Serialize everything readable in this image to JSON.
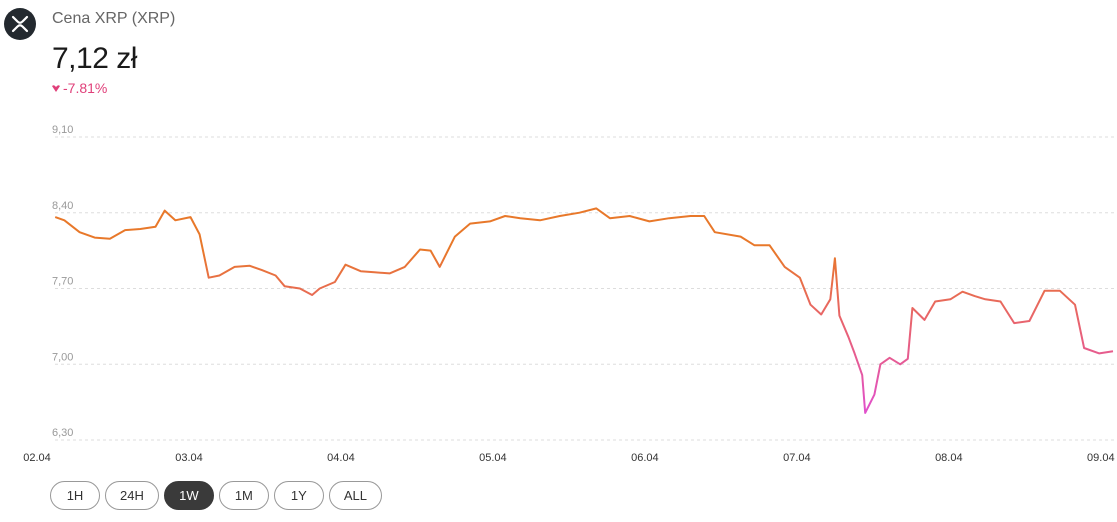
{
  "header": {
    "name": "Cena XRP (XRP)",
    "price": "7,12 zł",
    "change": "-7.81%"
  },
  "chart_data": {
    "type": "line",
    "x": [
      0.12,
      0.18,
      0.28,
      0.38,
      0.48,
      0.58,
      0.68,
      0.78,
      0.84,
      0.91,
      1.01,
      1.07,
      1.13,
      1.2,
      1.3,
      1.4,
      1.48,
      1.57,
      1.63,
      1.73,
      1.81,
      1.86,
      1.96,
      2.03,
      2.13,
      2.22,
      2.32,
      2.42,
      2.52,
      2.59,
      2.65,
      2.75,
      2.85,
      2.98,
      3.08,
      3.18,
      3.31,
      3.44,
      3.57,
      3.68,
      3.77,
      3.9,
      4.03,
      4.16,
      4.3,
      4.39,
      4.46,
      4.63,
      4.72,
      4.82,
      4.92,
      5.02,
      5.09,
      5.16,
      5.22,
      5.25,
      5.28,
      5.34,
      5.38,
      5.43,
      5.45,
      5.51,
      5.55,
      5.61,
      5.68,
      5.73,
      5.76,
      5.84,
      5.91,
      6.01,
      6.09,
      6.17,
      6.24,
      6.34,
      6.43,
      6.53,
      6.63,
      6.73,
      6.83,
      6.89,
      6.99,
      7.08
    ],
    "values": [
      8.36,
      8.33,
      8.22,
      8.17,
      8.16,
      8.24,
      8.25,
      8.27,
      8.42,
      8.33,
      8.36,
      8.2,
      7.8,
      7.82,
      7.9,
      7.91,
      7.87,
      7.82,
      7.72,
      7.7,
      7.64,
      7.7,
      7.76,
      7.92,
      7.86,
      7.85,
      7.84,
      7.9,
      8.06,
      8.05,
      7.9,
      8.18,
      8.3,
      8.32,
      8.37,
      8.35,
      8.33,
      8.37,
      8.4,
      8.44,
      8.35,
      8.37,
      8.32,
      8.35,
      8.37,
      8.37,
      8.22,
      8.18,
      8.1,
      8.1,
      7.9,
      7.8,
      7.55,
      7.46,
      7.6,
      7.98,
      7.45,
      7.25,
      7.1,
      6.9,
      6.55,
      6.72,
      7.0,
      7.06,
      7.0,
      7.05,
      7.52,
      7.41,
      7.58,
      7.6,
      7.67,
      7.63,
      7.6,
      7.58,
      7.38,
      7.4,
      7.68,
      7.68,
      7.55,
      7.15,
      7.1,
      7.12
    ],
    "colors": [
      "#e8782a",
      "#e8607a",
      "#e04fd4"
    ],
    "xlim": [
      0,
      7.1
    ],
    "xticks": [
      {
        "value": 0,
        "label": "02.04"
      },
      {
        "value": 1,
        "label": "03.04"
      },
      {
        "value": 2,
        "label": "04.04"
      },
      {
        "value": 3,
        "label": "05.04"
      },
      {
        "value": 4,
        "label": "06.04"
      },
      {
        "value": 5,
        "label": "07.04"
      },
      {
        "value": 6,
        "label": "08.04"
      },
      {
        "value": 7,
        "label": "09.04"
      }
    ],
    "ylim": [
      6.3,
      9.1
    ],
    "yticks": [
      {
        "value": 9.1,
        "label": "9,10"
      },
      {
        "value": 8.4,
        "label": "8,40"
      },
      {
        "value": 7.7,
        "label": "7,70"
      },
      {
        "value": 7.0,
        "label": "7,00"
      },
      {
        "value": 6.3,
        "label": "6,30"
      }
    ],
    "grid": true
  },
  "buttons": [
    "1H",
    "24H",
    "1W",
    "1M",
    "1Y",
    "ALL"
  ],
  "active_button": "1W"
}
